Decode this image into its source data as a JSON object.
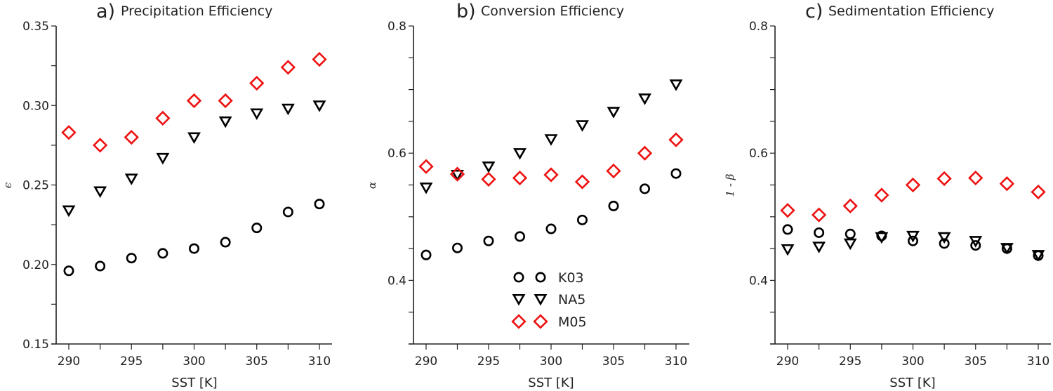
{
  "chart_data": [
    {
      "type": "scatter",
      "panel_label": "a)",
      "title": "Precipitation Efficiency",
      "xlabel": "SST [K]",
      "ylabel": "ϵ",
      "xlim": [
        289,
        311
      ],
      "ylim": [
        0.15,
        0.35
      ],
      "xticks": [
        290,
        295,
        300,
        305,
        310
      ],
      "xticks_minor": [
        292.5,
        297.5,
        302.5,
        307.5
      ],
      "yticks": [
        0.15,
        0.2,
        0.25,
        0.3,
        0.35
      ],
      "yticks_minor": [
        0.175,
        0.225,
        0.275,
        0.325
      ],
      "ytick_labels": [
        "0.15",
        "0.20",
        "0.25",
        "0.30",
        "0.35"
      ],
      "grid": false,
      "x": [
        290,
        292.5,
        295,
        297.5,
        300,
        302.5,
        305,
        307.5,
        310
      ],
      "series": [
        {
          "name": "K03",
          "marker": "circle",
          "color": "#000000",
          "values": [
            0.196,
            0.199,
            0.204,
            0.207,
            0.21,
            0.214,
            0.223,
            0.233,
            0.238
          ]
        },
        {
          "name": "NA5",
          "marker": "triangle-down",
          "color": "#000000",
          "values": [
            0.234,
            0.246,
            0.254,
            0.267,
            0.28,
            0.29,
            0.295,
            0.298,
            0.3
          ]
        },
        {
          "name": "M05",
          "marker": "diamond",
          "color": "#ee1111",
          "values": [
            0.283,
            0.275,
            0.28,
            0.292,
            0.303,
            0.303,
            0.314,
            0.324,
            0.329
          ]
        }
      ]
    },
    {
      "type": "scatter",
      "panel_label": "b)",
      "title": "Conversion Efficiency",
      "xlabel": "SST [K]",
      "ylabel": "α",
      "xlim": [
        289,
        311
      ],
      "ylim": [
        0.3,
        0.8
      ],
      "xticks": [
        290,
        295,
        300,
        305,
        310
      ],
      "xticks_minor": [
        292.5,
        297.5,
        302.5,
        307.5
      ],
      "yticks": [
        0.4,
        0.6,
        0.8
      ],
      "yticks_minor": [
        0.35,
        0.45,
        0.5,
        0.55,
        0.65,
        0.7,
        0.75
      ],
      "ytick_labels": [
        "0.4",
        "0.6",
        "0.8"
      ],
      "grid": false,
      "legend": {
        "position": "lower-center",
        "entries": [
          "K03",
          "NA5",
          "M05"
        ]
      },
      "x": [
        290,
        292.5,
        295,
        297.5,
        300,
        302.5,
        305,
        307.5,
        310
      ],
      "series": [
        {
          "name": "K03",
          "marker": "circle",
          "color": "#000000",
          "values": [
            0.44,
            0.451,
            0.462,
            0.469,
            0.481,
            0.495,
            0.517,
            0.544,
            0.568
          ]
        },
        {
          "name": "NA5",
          "marker": "triangle-down",
          "color": "#000000",
          "values": [
            0.546,
            0.566,
            0.579,
            0.6,
            0.622,
            0.644,
            0.665,
            0.686,
            0.708
          ]
        },
        {
          "name": "M05",
          "marker": "diamond",
          "color": "#ee1111",
          "values": [
            0.579,
            0.567,
            0.559,
            0.561,
            0.566,
            0.555,
            0.572,
            0.6,
            0.621
          ]
        }
      ]
    },
    {
      "type": "scatter",
      "panel_label": "c)",
      "title": "Sedimentation Efficiency",
      "xlabel": "SST [K]",
      "ylabel": "1 - β",
      "xlim": [
        289,
        311
      ],
      "ylim": [
        0.3,
        0.8
      ],
      "xticks": [
        290,
        295,
        300,
        305,
        310
      ],
      "xticks_minor": [
        292.5,
        297.5,
        302.5,
        307.5
      ],
      "yticks": [
        0.4,
        0.6,
        0.8
      ],
      "yticks_minor": [
        0.35,
        0.45,
        0.5,
        0.55,
        0.65,
        0.7,
        0.75
      ],
      "ytick_labels": [
        "0.4",
        "0.6",
        "0.8"
      ],
      "grid": false,
      "x": [
        290,
        292.5,
        295,
        297.5,
        300,
        302.5,
        305,
        307.5,
        310
      ],
      "series": [
        {
          "name": "K03",
          "marker": "circle",
          "color": "#000000",
          "values": [
            0.48,
            0.475,
            0.473,
            0.47,
            0.462,
            0.458,
            0.455,
            0.45,
            0.439
          ]
        },
        {
          "name": "NA5",
          "marker": "triangle-down",
          "color": "#000000",
          "values": [
            0.449,
            0.453,
            0.458,
            0.468,
            0.47,
            0.468,
            0.462,
            0.451,
            0.44
          ]
        },
        {
          "name": "M05",
          "marker": "diamond",
          "color": "#ee1111",
          "values": [
            0.51,
            0.503,
            0.517,
            0.534,
            0.55,
            0.56,
            0.561,
            0.552,
            0.539
          ]
        }
      ]
    }
  ]
}
